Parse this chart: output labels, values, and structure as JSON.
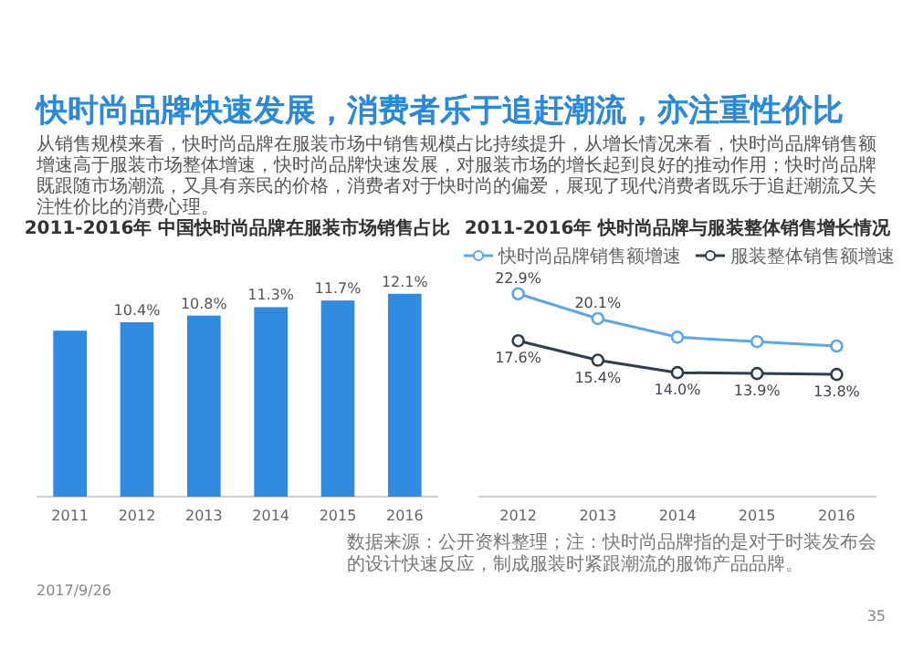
{
  "chart_data": [
    {
      "type": "bar",
      "title": "2011-2016年 中国快时尚品牌在服装市场销售占比",
      "categories": [
        "2011",
        "2012",
        "2013",
        "2014",
        "2015",
        "2016"
      ],
      "values": [
        9.9,
        10.4,
        10.8,
        11.3,
        11.7,
        12.1
      ],
      "color": "#2f8ae0",
      "value_labels": [
        null,
        "10.4%",
        "10.8%",
        "11.3%",
        "11.7%",
        "12.1%"
      ],
      "annotations": [
        "快时尚品牌快速发展，消费者乐于追赶潮流，亦注重性价比",
        "从销售规模来看，快时尚品牌在服装市场中销售规模占比持续提升，从增长情况来看，快时尚品牌销售额增速高于服装市场整体增速，快时尚品牌快速发展，对服装市场的增长起到良好的推动作用；快时尚品牌既跟随市场潮流，又具有亲民的价格，消费者对于快时尚的偏爱，展现了现代消费者既乐于追赶潮流又关注性价比的消费心理。",
        "2017/9/26"
      ]
    },
    {
      "type": "line",
      "title": "2011-2016年 快时尚品牌与服装整体销售增长情况",
      "categories": [
        "2012",
        "2013",
        "2014",
        "2015",
        "2016"
      ],
      "marker": "circle",
      "legend": "top",
      "series": [
        {
          "name": "快时尚品牌销售额增速",
          "color": "#5aa9e6",
          "values": [
            22.9,
            20.1,
            18.0,
            17.5,
            17.0
          ],
          "value_labels": [
            "22.9%",
            "20.1%",
            null,
            null,
            null
          ]
        },
        {
          "name": "服装整体销售额增速",
          "color": "#2c3e50",
          "values": [
            17.6,
            15.4,
            14.0,
            13.9,
            13.8
          ],
          "value_labels": [
            "17.6%",
            "15.4%",
            "14.0%",
            "13.9%",
            "13.8%"
          ]
        }
      ],
      "annotations": [
        "数据来源：公开资料整理；注：快时尚品牌指的是对于时装发布会的设计快速反应，制成服装时紧跟潮流的服饰产品品牌。",
        "35"
      ]
    }
  ]
}
